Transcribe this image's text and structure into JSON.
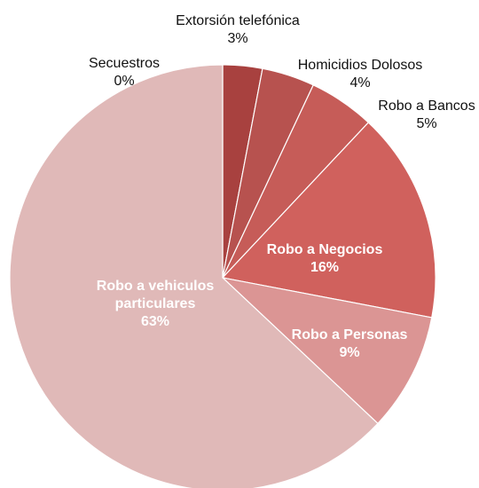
{
  "chart_data": {
    "type": "pie",
    "title": "",
    "start_angle_deg": 90,
    "direction": "clockwise",
    "slices": [
      {
        "label": "Secuestros",
        "value": 0,
        "value_label": "0%",
        "color": "#a8413f"
      },
      {
        "label": "Extorsión telefónica",
        "value": 3,
        "value_label": "3%",
        "color": "#a8413f"
      },
      {
        "label": "Homicidios Dolosos",
        "value": 4,
        "value_label": "4%",
        "color": "#b7524f"
      },
      {
        "label": "Robo a Bancos",
        "value": 5,
        "value_label": "5%",
        "color": "#c65c58"
      },
      {
        "label": "Robo a Negocios",
        "value": 16,
        "value_label": "16%",
        "color": "#d0615d"
      },
      {
        "label": "Robo a Personas",
        "value": 9,
        "value_label": "9%",
        "color": "#db9594"
      },
      {
        "label": "Robo a vehiculos particulares",
        "value": 63,
        "value_label": "63%",
        "color": "#e0b9b8"
      }
    ],
    "outside_labels": [
      "Secuestros",
      "Extorsión telefónica",
      "Homicidios Dolosos",
      "Robo a Bancos"
    ],
    "inside_labels": [
      "Robo a Negocios",
      "Robo a Personas",
      "Robo a vehiculos particulares"
    ]
  }
}
